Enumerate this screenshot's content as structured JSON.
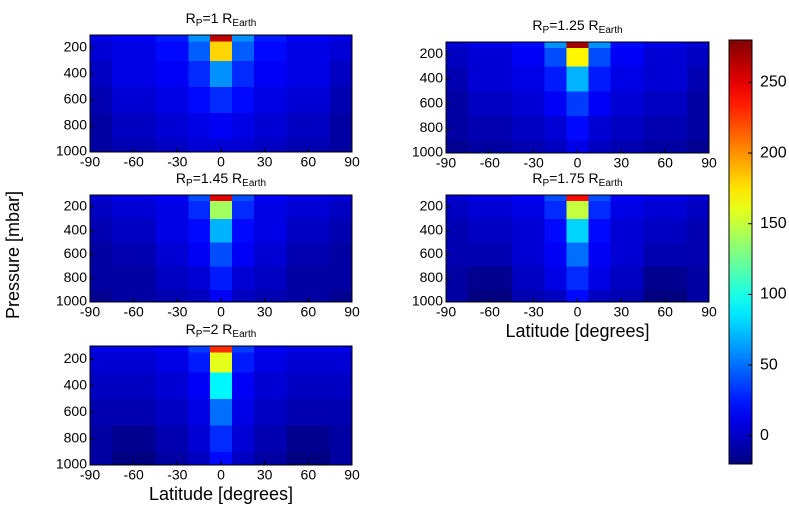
{
  "ylabel": "Pressure [mbar]",
  "colorbar": {
    "colormap": "jet",
    "clim": [
      -20,
      280
    ],
    "ticks": [
      0,
      50,
      100,
      150,
      200,
      250
    ]
  },
  "chart_data": [
    {
      "type": "contour",
      "title": [
        "R",
        "P",
        "=1 R",
        "Earth"
      ],
      "x": [
        -90,
        -60,
        -30,
        -15,
        0,
        15,
        30,
        60,
        90
      ],
      "y": [
        100,
        200,
        400,
        600,
        800,
        1000
      ],
      "z": [
        [
          10,
          15,
          25,
          60,
          260,
          60,
          25,
          15,
          10
        ],
        [
          5,
          10,
          20,
          45,
          180,
          45,
          20,
          10,
          5
        ],
        [
          0,
          10,
          15,
          30,
          60,
          30,
          15,
          10,
          0
        ],
        [
          -5,
          5,
          10,
          20,
          30,
          20,
          10,
          5,
          -5
        ],
        [
          -10,
          0,
          5,
          10,
          15,
          10,
          5,
          0,
          -10
        ],
        [
          -10,
          -5,
          0,
          5,
          5,
          5,
          0,
          -5,
          -10
        ]
      ],
      "xlim": [
        -90,
        90
      ],
      "xticks": [
        -90,
        -60,
        -30,
        0,
        30,
        60,
        90
      ],
      "ylim": [
        100,
        1000
      ],
      "yticks": [
        200,
        400,
        600,
        800,
        1000
      ],
      "y_reversed": true
    },
    {
      "type": "contour",
      "title": [
        "R",
        "P",
        "=1.25 R",
        "Earth"
      ],
      "x": [
        -90,
        -60,
        -30,
        -15,
        0,
        15,
        30,
        60,
        90
      ],
      "y": [
        100,
        200,
        400,
        600,
        800,
        1000
      ],
      "z": [
        [
          5,
          10,
          20,
          60,
          270,
          60,
          20,
          10,
          5
        ],
        [
          0,
          5,
          15,
          40,
          170,
          40,
          15,
          5,
          0
        ],
        [
          -5,
          5,
          10,
          25,
          70,
          25,
          10,
          5,
          -5
        ],
        [
          -10,
          0,
          5,
          15,
          35,
          15,
          5,
          0,
          -10
        ],
        [
          -10,
          -5,
          0,
          5,
          20,
          5,
          0,
          -5,
          -10
        ],
        [
          -15,
          -10,
          -5,
          0,
          10,
          0,
          -5,
          -10,
          -15
        ]
      ],
      "xlim": [
        -90,
        90
      ],
      "xticks": [
        -90,
        -60,
        -30,
        0,
        30,
        60,
        90
      ],
      "ylim": [
        100,
        1000
      ],
      "yticks": [
        200,
        400,
        600,
        800,
        1000
      ],
      "y_reversed": true
    },
    {
      "type": "contour",
      "title": [
        "R",
        "P",
        "=1.45 R",
        "Earth"
      ],
      "x": [
        -90,
        -60,
        -30,
        -15,
        0,
        15,
        30,
        60,
        90
      ],
      "y": [
        100,
        200,
        400,
        600,
        800,
        1000
      ],
      "z": [
        [
          5,
          10,
          15,
          40,
          250,
          40,
          15,
          10,
          5
        ],
        [
          0,
          5,
          10,
          30,
          140,
          30,
          10,
          5,
          0
        ],
        [
          -5,
          0,
          10,
          20,
          70,
          20,
          10,
          0,
          -5
        ],
        [
          -10,
          -5,
          5,
          15,
          40,
          15,
          5,
          -5,
          -10
        ],
        [
          -10,
          -10,
          0,
          5,
          25,
          5,
          0,
          -10,
          -10
        ],
        [
          -15,
          -10,
          -5,
          0,
          15,
          0,
          -5,
          -10,
          -15
        ]
      ],
      "xlim": [
        -90,
        90
      ],
      "xticks": [
        -90,
        -60,
        -30,
        0,
        30,
        60,
        90
      ],
      "ylim": [
        100,
        1000
      ],
      "yticks": [
        200,
        400,
        600,
        800,
        1000
      ],
      "y_reversed": true
    },
    {
      "type": "contour",
      "title": [
        "R",
        "P",
        "=1.75 R",
        "Earth"
      ],
      "xlabel": "Latitude [degrees]",
      "x": [
        -90,
        -60,
        -30,
        -15,
        0,
        15,
        30,
        60,
        90
      ],
      "y": [
        100,
        200,
        400,
        600,
        800,
        1000
      ],
      "z": [
        [
          5,
          10,
          15,
          40,
          240,
          40,
          15,
          10,
          5
        ],
        [
          0,
          5,
          10,
          30,
          150,
          30,
          10,
          5,
          0
        ],
        [
          -5,
          0,
          5,
          20,
          80,
          20,
          5,
          0,
          -5
        ],
        [
          -5,
          -5,
          5,
          15,
          50,
          15,
          5,
          -5,
          -5
        ],
        [
          -10,
          -15,
          0,
          10,
          30,
          10,
          0,
          -15,
          -10
        ],
        [
          -10,
          -20,
          -5,
          0,
          20,
          0,
          -5,
          -20,
          -10
        ]
      ],
      "xlim": [
        -90,
        90
      ],
      "xticks": [
        -90,
        -60,
        -30,
        0,
        30,
        60,
        90
      ],
      "ylim": [
        100,
        1000
      ],
      "yticks": [
        200,
        400,
        600,
        800,
        1000
      ],
      "y_reversed": true
    },
    {
      "type": "contour",
      "title": [
        "R",
        "P",
        "=2 R",
        "Earth"
      ],
      "xlabel": "Latitude [degrees]",
      "x": [
        -90,
        -60,
        -30,
        -15,
        0,
        15,
        30,
        60,
        90
      ],
      "y": [
        100,
        200,
        400,
        600,
        800,
        1000
      ],
      "z": [
        [
          10,
          10,
          15,
          35,
          230,
          35,
          15,
          10,
          10
        ],
        [
          5,
          5,
          10,
          25,
          160,
          25,
          10,
          5,
          5
        ],
        [
          0,
          0,
          5,
          15,
          90,
          15,
          5,
          0,
          0
        ],
        [
          -5,
          -5,
          0,
          10,
          50,
          10,
          0,
          -5,
          -5
        ],
        [
          -10,
          -15,
          -5,
          5,
          30,
          5,
          -5,
          -15,
          -10
        ],
        [
          -10,
          -20,
          -10,
          0,
          20,
          0,
          -10,
          -20,
          -10
        ]
      ],
      "xlim": [
        -90,
        90
      ],
      "xticks": [
        -90,
        -60,
        -30,
        0,
        30,
        60,
        90
      ],
      "ylim": [
        100,
        1000
      ],
      "yticks": [
        200,
        400,
        600,
        800,
        1000
      ],
      "y_reversed": true
    }
  ]
}
